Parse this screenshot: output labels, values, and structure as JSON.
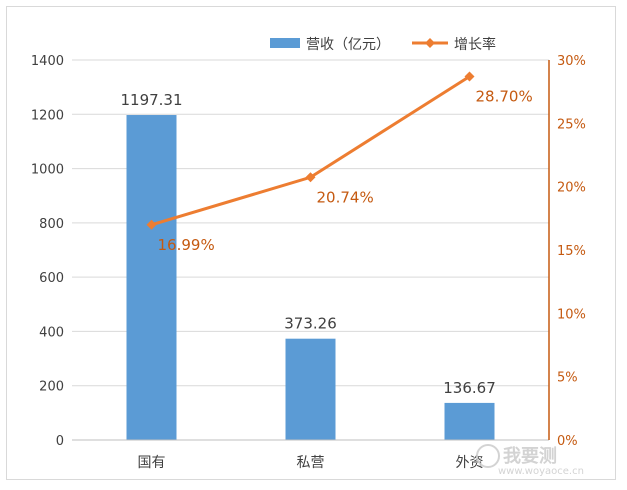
{
  "chart_data": {
    "type": "bar",
    "categories": [
      "国有",
      "私营",
      "外资"
    ],
    "series": [
      {
        "name": "营收（亿元）",
        "type": "bar",
        "axis": "left",
        "values": [
          1197.31,
          373.26,
          136.67
        ],
        "labels": [
          "1197.31",
          "373.26",
          "136.67"
        ],
        "color": "#5b9bd5"
      },
      {
        "name": "增长率",
        "type": "line",
        "axis": "right",
        "values": [
          16.99,
          20.74,
          28.7
        ],
        "labels": [
          "16.99%",
          "20.74%",
          "28.70%"
        ],
        "color": "#ed7d31"
      }
    ],
    "y_left": {
      "min": 0,
      "max": 1400,
      "step": 200,
      "ticks": [
        "0",
        "200",
        "400",
        "600",
        "800",
        "1000",
        "1200",
        "1400"
      ]
    },
    "y_right": {
      "min": 0,
      "max": 30,
      "step": 5,
      "ticks": [
        "0%",
        "5%",
        "10%",
        "15%",
        "20%",
        "25%",
        "30%"
      ]
    },
    "grid": true,
    "legend_position": "top-right"
  },
  "watermark": {
    "text": "我要测",
    "sub": "www.woyaoce.cn"
  },
  "colors": {
    "axis_right": "#c55a11",
    "grid": "#d9d9d9",
    "text": "#404040"
  }
}
